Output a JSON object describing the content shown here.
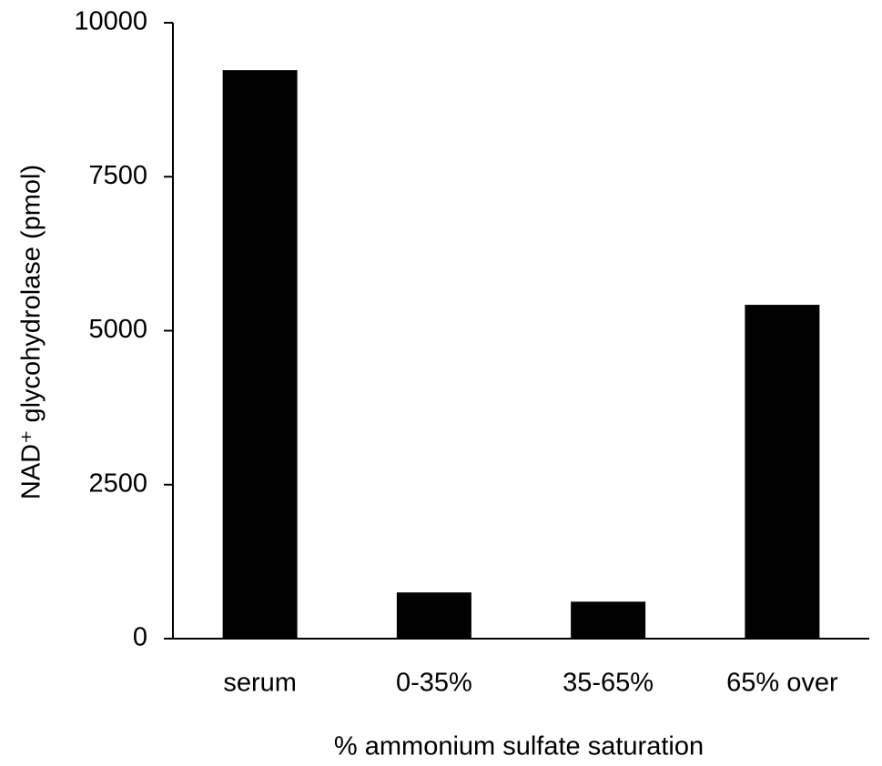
{
  "chart_data": {
    "type": "bar",
    "x_label": "% ammonium sulfate saturation",
    "y_label": "NAD⁺ glycohydrolase (pmol)",
    "categories": [
      "serum",
      "0-35%",
      "35-65%",
      "65% over"
    ],
    "values": [
      9230,
      750,
      600,
      5420
    ],
    "color": "#000000",
    "ylim": [
      0,
      10000
    ],
    "yticks": [
      0,
      2500,
      5000,
      7500,
      10000
    ],
    "grid": false
  }
}
